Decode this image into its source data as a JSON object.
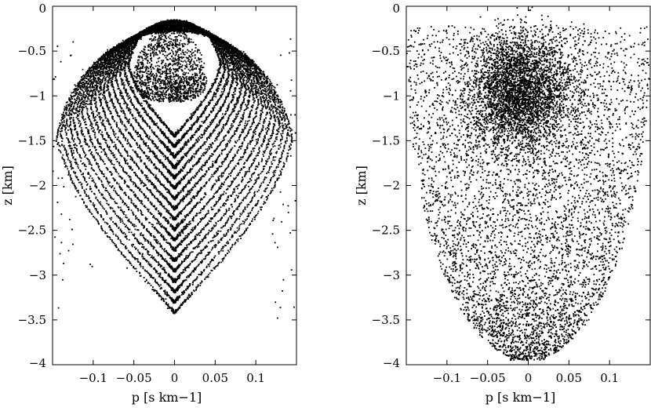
{
  "chart_data": [
    {
      "type": "scatter",
      "panel": "left",
      "title": "",
      "xlabel": "p [s km−1]",
      "ylabel": "z [km]",
      "xlim": [
        -0.15,
        0.15
      ],
      "ylim": [
        -4,
        0
      ],
      "xticks": [
        -0.1,
        -0.05,
        0,
        0.05,
        0.1
      ],
      "xtick_labels": [
        "−0.1",
        "−0.05",
        "0",
        "0.05",
        "0.1"
      ],
      "yticks": [
        0,
        -0.5,
        -1,
        -1.5,
        -2,
        -2.5,
        -3,
        -3.5,
        -4
      ],
      "ytick_labels": [
        "0",
        "−0.5",
        "−1",
        "−1.5",
        "−2",
        "−2.5",
        "−3",
        "−3.5",
        "−4"
      ],
      "grid": false,
      "legend": "none",
      "pattern": "nested closed orbits (Poincaré section)",
      "orbit_count": 18,
      "orbit_top_z": -0.28,
      "orbit_outer_half_width_p": 0.148,
      "orbit_outer_bottom_z": -3.42,
      "orbit_inner_half_width_p": 0.058,
      "orbit_inner_bottom_z": -1.45,
      "chaotic_core": {
        "center_p": -0.005,
        "center_z": -0.8,
        "half_width_p": 0.045,
        "half_height_z": 0.42,
        "point_count": 1400
      },
      "color": "#000000"
    },
    {
      "type": "scatter",
      "panel": "right",
      "title": "",
      "xlabel": "p [s km−1]",
      "ylabel": "z [km]",
      "xlim": [
        -0.15,
        0.15
      ],
      "ylim": [
        -4,
        0
      ],
      "xticks": [
        -0.1,
        -0.05,
        0,
        0.05,
        0.1
      ],
      "xtick_labels": [
        "−0.1",
        "−0.05",
        "0",
        "0.05",
        "0.1"
      ],
      "yticks": [
        0,
        -0.5,
        -1,
        -1.5,
        -2,
        -2.5,
        -3,
        -3.5,
        -4
      ],
      "ytick_labels": [
        "0",
        "−0.5",
        "−1",
        "−1.5",
        "−2",
        "−2.5",
        "−3",
        "−3.5",
        "−4"
      ],
      "grid": false,
      "legend": "none",
      "pattern": "diffuse chaotic scatter",
      "dense_core": {
        "center_p": -0.01,
        "center_z": -0.95,
        "half_width_p": 0.06,
        "half_height_z": 0.65,
        "point_count": 3600
      },
      "halo": {
        "top_z": -0.22,
        "bottom_z": -3.95,
        "half_width_p": 0.15,
        "point_count": 5200
      },
      "color": "#000000"
    }
  ]
}
